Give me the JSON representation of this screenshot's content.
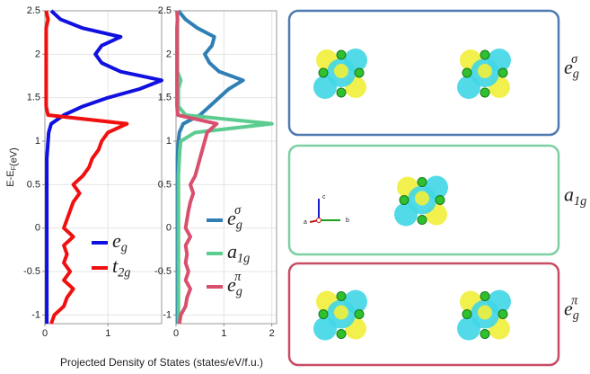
{
  "chart_data": [
    {
      "type": "line",
      "orientation": "vertical",
      "ylabel": "E-E_F(eV)",
      "xlabel": "Projected Density of States (states/eV/f.u.)",
      "y": [
        -1.1,
        -1.0,
        -0.9,
        -0.8,
        -0.7,
        -0.6,
        -0.5,
        -0.4,
        -0.3,
        -0.2,
        -0.1,
        0,
        0.1,
        0.2,
        0.3,
        0.4,
        0.5,
        0.6,
        0.7,
        0.8,
        0.9,
        1.0,
        1.1,
        1.2,
        1.3,
        1.4,
        1.5,
        1.6,
        1.7,
        1.8,
        1.9,
        2.0,
        2.1,
        2.2,
        2.3,
        2.4,
        2.5
      ],
      "series": [
        {
          "name": "e_g",
          "color": "#1010e0",
          "values": [
            0.03,
            0.03,
            0.03,
            0.03,
            0.03,
            0.03,
            0.03,
            0.03,
            0.03,
            0.03,
            0.03,
            0.03,
            0.03,
            0.03,
            0.03,
            0.03,
            0.03,
            0.03,
            0.03,
            0.03,
            0.04,
            0.05,
            0.06,
            0.1,
            0.3,
            0.6,
            1.0,
            1.5,
            1.85,
            1.2,
            0.9,
            0.8,
            0.9,
            1.2,
            0.6,
            0.25,
            0.1
          ]
        },
        {
          "name": "t_{2g}",
          "color": "#f01010",
          "values": [
            0.1,
            0.15,
            0.3,
            0.35,
            0.45,
            0.3,
            0.4,
            0.3,
            0.35,
            0.3,
            0.45,
            0.3,
            0.35,
            0.4,
            0.45,
            0.55,
            0.45,
            0.6,
            0.7,
            0.75,
            0.85,
            0.9,
            1.0,
            1.3,
            0.05,
            0.02,
            0.02,
            0.02,
            0.02,
            0.02,
            0.02,
            0.02,
            0.02,
            0.02,
            0.02,
            0.05,
            0.02
          ]
        }
      ],
      "xlim": [
        0,
        1.85
      ],
      "xticks": [
        0,
        1
      ],
      "ylim": [
        -1.1,
        2.5
      ],
      "yticks": [
        -1,
        -0.5,
        0,
        0.5,
        1,
        1.5,
        2,
        2.5
      ],
      "grid": true,
      "legend": "lower right"
    },
    {
      "type": "line",
      "orientation": "vertical",
      "y": [
        -1.1,
        -1.0,
        -0.9,
        -0.8,
        -0.7,
        -0.6,
        -0.5,
        -0.4,
        -0.3,
        -0.2,
        -0.1,
        0,
        0.1,
        0.2,
        0.3,
        0.4,
        0.5,
        0.6,
        0.7,
        0.8,
        0.9,
        1.0,
        1.1,
        1.2,
        1.3,
        1.4,
        1.5,
        1.6,
        1.7,
        1.8,
        1.9,
        2.0,
        2.1,
        2.2,
        2.3,
        2.4,
        2.5
      ],
      "series": [
        {
          "name": "e_g^σ",
          "color": "#2f7fb5",
          "values": [
            0.03,
            0.03,
            0.03,
            0.03,
            0.03,
            0.03,
            0.03,
            0.03,
            0.03,
            0.03,
            0.03,
            0.03,
            0.03,
            0.03,
            0.03,
            0.03,
            0.03,
            0.03,
            0.03,
            0.03,
            0.04,
            0.05,
            0.07,
            0.15,
            0.5,
            0.7,
            0.9,
            1.1,
            1.4,
            0.9,
            0.7,
            0.6,
            0.75,
            0.8,
            0.45,
            0.2,
            0.05
          ]
        },
        {
          "name": "a_{1g}",
          "color": "#5ccc90",
          "values": [
            0.05,
            0.05,
            0.05,
            0.05,
            0.05,
            0.05,
            0.05,
            0.05,
            0.05,
            0.05,
            0.05,
            0.05,
            0.05,
            0.05,
            0.05,
            0.05,
            0.05,
            0.05,
            0.06,
            0.07,
            0.08,
            0.1,
            0.4,
            2.0,
            0.2,
            0.05,
            0.05,
            0.05,
            0.1,
            0.03,
            0.03,
            0.03,
            0.03,
            0.03,
            0.03,
            0.03,
            0.03
          ]
        },
        {
          "name": "e_g^π",
          "color": "#d9506e",
          "values": [
            0.07,
            0.1,
            0.2,
            0.23,
            0.3,
            0.2,
            0.26,
            0.2,
            0.23,
            0.2,
            0.3,
            0.2,
            0.23,
            0.26,
            0.3,
            0.36,
            0.3,
            0.4,
            0.45,
            0.5,
            0.55,
            0.6,
            0.65,
            0.85,
            0.04,
            0.02,
            0.02,
            0.02,
            0.02,
            0.02,
            0.02,
            0.02,
            0.02,
            0.02,
            0.02,
            0.03,
            0.02
          ]
        }
      ],
      "xlim": [
        0,
        2.1
      ],
      "xticks": [
        0,
        1,
        2
      ],
      "ylim": [
        -1.1,
        2.5
      ],
      "yticks": [
        -1,
        -0.5,
        0,
        0.5,
        1,
        1.5,
        2,
        2.5
      ],
      "grid": true,
      "legend": "lower right"
    }
  ],
  "panels": [
    {
      "label": "e_g^σ",
      "color": "#4f79b0"
    },
    {
      "label": "a_{1g}",
      "color": "#7dcfa0"
    },
    {
      "label": "e_g^π",
      "color": "#c84c64"
    }
  ],
  "axis_glyph": [
    "c",
    "a",
    "b"
  ]
}
